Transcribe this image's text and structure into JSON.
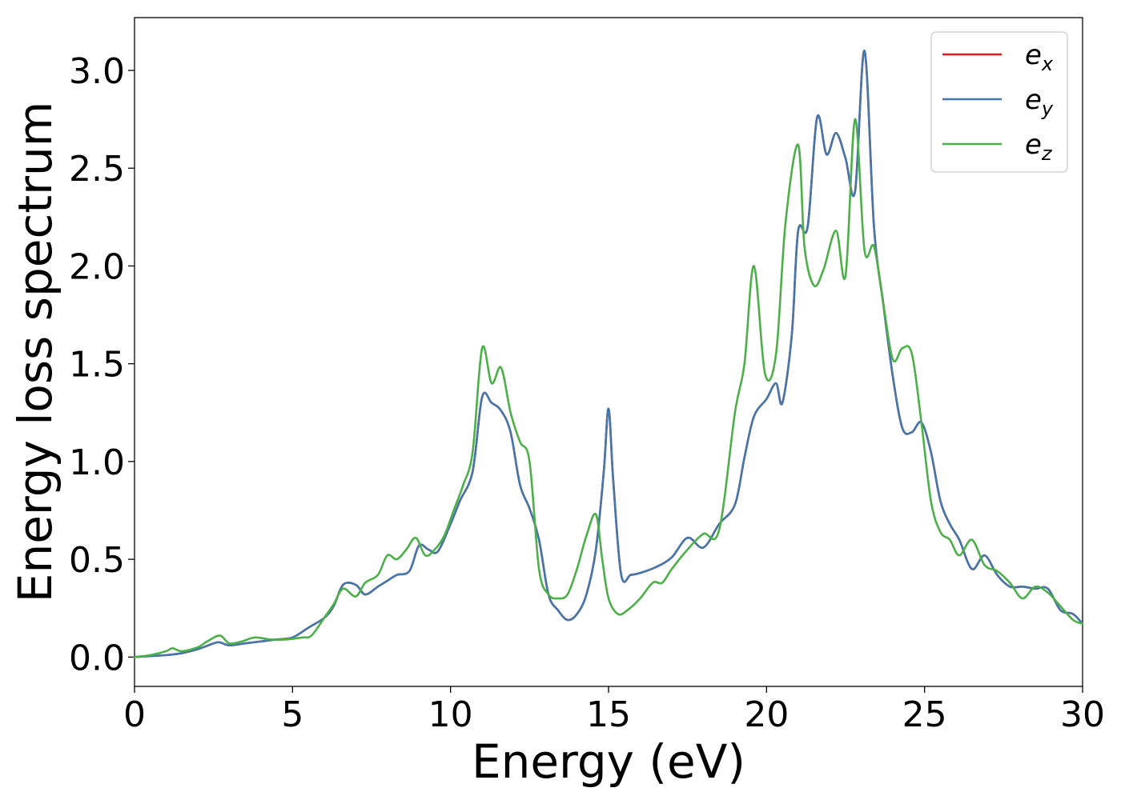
{
  "chart_data": {
    "type": "line",
    "xlabel": "Energy (eV)",
    "ylabel": "Energy loss spectrum",
    "xlim": [
      0,
      30
    ],
    "ylim": [
      -0.15,
      3.27
    ],
    "x_ticks": [
      0,
      5,
      10,
      15,
      20,
      25,
      30
    ],
    "x_tick_labels": [
      "0",
      "5",
      "10",
      "15",
      "20",
      "25",
      "30"
    ],
    "y_ticks": [
      0.0,
      0.5,
      1.0,
      1.5,
      2.0,
      2.5,
      3.0
    ],
    "y_tick_labels": [
      "0.0",
      "0.5",
      "1.0",
      "1.5",
      "2.0",
      "2.5",
      "3.0"
    ],
    "grid": false,
    "legend_position": "top-right",
    "series": [
      {
        "name": "e",
        "subscript": "x",
        "color": "#e41a1c",
        "x": [
          0,
          0.5,
          1,
          1.5,
          2,
          2.5,
          2.7,
          3,
          3.5,
          4,
          4.5,
          5,
          5.5,
          6,
          6.3,
          6.6,
          7,
          7.3,
          7.7,
          8,
          8.3,
          8.7,
          9,
          9.3,
          9.6,
          10,
          10.3,
          10.7,
          11,
          11.3,
          11.6,
          11.9,
          12.2,
          12.5,
          12.8,
          13.1,
          13.4,
          13.7,
          14,
          14.3,
          14.6,
          14.85,
          15,
          15.15,
          15.4,
          15.7,
          16,
          16.5,
          17,
          17.5,
          18,
          18.5,
          19,
          19.3,
          19.6,
          20,
          20.3,
          20.5,
          20.8,
          21,
          21.3,
          21.6,
          21.9,
          22.2,
          22.5,
          22.8,
          23.1,
          23.4,
          23.7,
          24,
          24.3,
          24.6,
          24.9,
          25.2,
          25.5,
          25.8,
          26.1,
          26.5,
          26.9,
          27.3,
          27.7,
          28.1,
          28.5,
          28.9,
          29.3,
          29.7,
          30
        ],
        "values": [
          0,
          0.005,
          0.01,
          0.02,
          0.04,
          0.07,
          0.075,
          0.06,
          0.07,
          0.08,
          0.09,
          0.1,
          0.15,
          0.2,
          0.26,
          0.37,
          0.37,
          0.32,
          0.36,
          0.39,
          0.42,
          0.44,
          0.57,
          0.55,
          0.54,
          0.68,
          0.8,
          0.95,
          1.33,
          1.3,
          1.26,
          1.15,
          0.88,
          0.76,
          0.6,
          0.32,
          0.24,
          0.19,
          0.22,
          0.32,
          0.55,
          0.95,
          1.27,
          0.9,
          0.42,
          0.42,
          0.43,
          0.46,
          0.51,
          0.61,
          0.56,
          0.68,
          0.78,
          1.02,
          1.23,
          1.32,
          1.4,
          1.3,
          1.65,
          2.18,
          2.2,
          2.76,
          2.57,
          2.68,
          2.55,
          2.38,
          3.1,
          2.2,
          1.8,
          1.43,
          1.17,
          1.15,
          1.2,
          1.05,
          0.8,
          0.68,
          0.6,
          0.45,
          0.52,
          0.42,
          0.36,
          0.36,
          0.35,
          0.35,
          0.24,
          0.22,
          0.17
        ]
      },
      {
        "name": "e",
        "subscript": "y",
        "color": "#4477aa",
        "x": [
          0,
          0.5,
          1,
          1.5,
          2,
          2.5,
          2.7,
          3,
          3.5,
          4,
          4.5,
          5,
          5.5,
          6,
          6.3,
          6.6,
          7,
          7.3,
          7.7,
          8,
          8.3,
          8.7,
          9,
          9.3,
          9.6,
          10,
          10.3,
          10.7,
          11,
          11.3,
          11.6,
          11.9,
          12.2,
          12.5,
          12.8,
          13.1,
          13.4,
          13.7,
          14,
          14.3,
          14.6,
          14.85,
          15,
          15.15,
          15.4,
          15.7,
          16,
          16.5,
          17,
          17.5,
          18,
          18.5,
          19,
          19.3,
          19.6,
          20,
          20.3,
          20.5,
          20.8,
          21,
          21.3,
          21.6,
          21.9,
          22.2,
          22.5,
          22.8,
          23.1,
          23.4,
          23.7,
          24,
          24.3,
          24.6,
          24.9,
          25.2,
          25.5,
          25.8,
          26.1,
          26.5,
          26.9,
          27.3,
          27.7,
          28.1,
          28.5,
          28.9,
          29.3,
          29.7,
          30
        ],
        "values": [
          0,
          0.005,
          0.01,
          0.02,
          0.04,
          0.07,
          0.075,
          0.06,
          0.07,
          0.08,
          0.09,
          0.1,
          0.15,
          0.2,
          0.26,
          0.37,
          0.37,
          0.32,
          0.36,
          0.39,
          0.42,
          0.44,
          0.57,
          0.55,
          0.54,
          0.68,
          0.8,
          0.95,
          1.33,
          1.3,
          1.26,
          1.15,
          0.88,
          0.76,
          0.6,
          0.32,
          0.24,
          0.19,
          0.22,
          0.32,
          0.55,
          0.95,
          1.27,
          0.9,
          0.42,
          0.42,
          0.43,
          0.46,
          0.51,
          0.61,
          0.56,
          0.68,
          0.78,
          1.02,
          1.23,
          1.32,
          1.4,
          1.3,
          1.65,
          2.18,
          2.2,
          2.76,
          2.57,
          2.68,
          2.55,
          2.38,
          3.1,
          2.2,
          1.8,
          1.43,
          1.17,
          1.15,
          1.2,
          1.05,
          0.8,
          0.68,
          0.6,
          0.45,
          0.52,
          0.42,
          0.36,
          0.36,
          0.35,
          0.35,
          0.24,
          0.22,
          0.17
        ]
      },
      {
        "name": "e",
        "subscript": "z",
        "color": "#4daf4a",
        "x": [
          0,
          0.5,
          1,
          1.2,
          1.5,
          2,
          2.3,
          2.7,
          3,
          3.4,
          3.8,
          4.3,
          4.8,
          5.3,
          5.6,
          6,
          6.3,
          6.6,
          7,
          7.3,
          7.7,
          8,
          8.3,
          8.6,
          8.9,
          9.2,
          9.5,
          9.8,
          10.1,
          10.4,
          10.7,
          11,
          11.3,
          11.6,
          11.9,
          12.2,
          12.5,
          12.8,
          13.1,
          13.4,
          13.7,
          14,
          14.3,
          14.6,
          14.8,
          15,
          15.3,
          15.6,
          16,
          16.4,
          16.7,
          17,
          17.5,
          18,
          18.5,
          19,
          19.3,
          19.6,
          19.95,
          20.3,
          20.6,
          21,
          21.2,
          21.5,
          21.8,
          22.2,
          22.5,
          22.8,
          23.1,
          23.4,
          23.7,
          24,
          24.3,
          24.6,
          24.9,
          25.2,
          25.5,
          25.8,
          26.1,
          26.5,
          26.9,
          27.3,
          27.7,
          28.1,
          28.5,
          28.9,
          29.3,
          29.7,
          30
        ],
        "values": [
          0,
          0.01,
          0.03,
          0.045,
          0.03,
          0.05,
          0.08,
          0.11,
          0.07,
          0.08,
          0.1,
          0.09,
          0.09,
          0.1,
          0.11,
          0.2,
          0.27,
          0.35,
          0.31,
          0.38,
          0.42,
          0.52,
          0.5,
          0.55,
          0.61,
          0.52,
          0.55,
          0.62,
          0.75,
          0.88,
          1.05,
          1.58,
          1.4,
          1.48,
          1.25,
          1.1,
          1.0,
          0.45,
          0.32,
          0.3,
          0.32,
          0.45,
          0.62,
          0.73,
          0.5,
          0.3,
          0.22,
          0.24,
          0.3,
          0.38,
          0.38,
          0.45,
          0.55,
          0.63,
          0.65,
          1.25,
          1.5,
          2.0,
          1.45,
          1.55,
          2.22,
          2.62,
          2.1,
          1.9,
          1.98,
          2.18,
          1.95,
          2.75,
          2.08,
          2.1,
          1.8,
          1.52,
          1.58,
          1.55,
          1.2,
          0.8,
          0.64,
          0.6,
          0.52,
          0.6,
          0.47,
          0.44,
          0.38,
          0.3,
          0.36,
          0.33,
          0.26,
          0.19,
          0.17
        ]
      }
    ]
  }
}
